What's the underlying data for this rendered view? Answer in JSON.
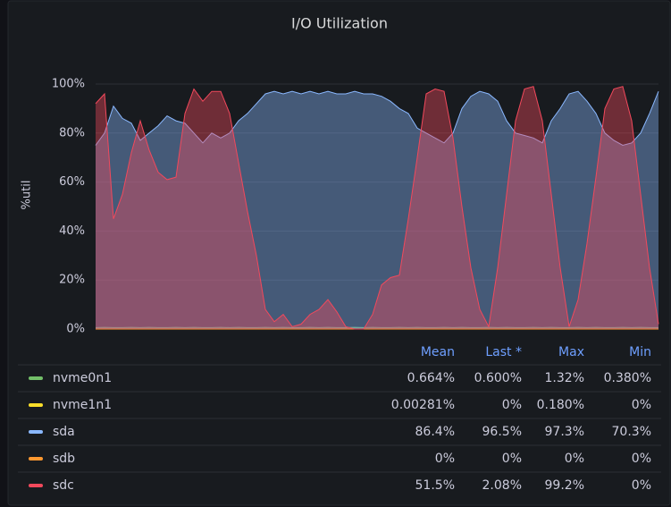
{
  "chart_data": {
    "type": "area",
    "title": "I/O Utilization",
    "y_label": "%util",
    "ylim": [
      0,
      100
    ],
    "yticks": [
      {
        "value": 0,
        "label": "0%"
      },
      {
        "value": 20,
        "label": "20%"
      },
      {
        "value": 40,
        "label": "40%"
      },
      {
        "value": 60,
        "label": "60%"
      },
      {
        "value": 80,
        "label": "80%"
      },
      {
        "value": 100,
        "label": "100%"
      }
    ],
    "grid": true,
    "legend_columns": [
      "Mean",
      "Last *",
      "Max",
      "Min"
    ],
    "series": [
      {
        "name": "nvme0n1",
        "color": "#73bf69",
        "stats": [
          "0.664%",
          "0.600%",
          "1.32%",
          "0.380%"
        ],
        "values": [
          0.6,
          0.7,
          0.6,
          0.6,
          0.7,
          0.6,
          0.7,
          0.6,
          0.6,
          0.7,
          0.6,
          0.7,
          0.6,
          0.6,
          0.7,
          0.6,
          0.7,
          0.6,
          0.6,
          0.7,
          0.6,
          0.7,
          0.6,
          0.6,
          0.7,
          0.6,
          0.7,
          0.6,
          0.6,
          0.7,
          0.6,
          0.7,
          0.6,
          0.6,
          0.7,
          0.6,
          0.7,
          0.6,
          0.6,
          0.7,
          0.6,
          0.7,
          0.6,
          0.6,
          0.7,
          0.6,
          0.7,
          0.6,
          0.6,
          0.7,
          0.6,
          0.7,
          0.6,
          0.6,
          0.7,
          0.6,
          0.7,
          0.6,
          0.6,
          0.7,
          0.6,
          0.7,
          0.6,
          0.6
        ]
      },
      {
        "name": "nvme1n1",
        "color": "#fade2a",
        "stats": [
          "0.00281%",
          "0%",
          "0.180%",
          "0%"
        ],
        "values": [
          0,
          0,
          0,
          0,
          0,
          0,
          0,
          0,
          0,
          0,
          0,
          0,
          0,
          0,
          0,
          0,
          0,
          0,
          0,
          0,
          0,
          0,
          0,
          0,
          0,
          0,
          0,
          0,
          0,
          0,
          0,
          0,
          0,
          0,
          0,
          0,
          0,
          0,
          0,
          0,
          0,
          0,
          0,
          0,
          0,
          0,
          0,
          0,
          0,
          0,
          0,
          0,
          0,
          0,
          0,
          0,
          0,
          0,
          0,
          0,
          0,
          0,
          0,
          0
        ]
      },
      {
        "name": "sda",
        "color": "#8ab8ff",
        "stats": [
          "86.4%",
          "96.5%",
          "97.3%",
          "70.3%"
        ],
        "values": [
          75,
          80,
          91,
          86,
          84,
          77,
          80,
          83,
          87,
          85,
          84,
          80,
          76,
          80,
          78,
          80,
          85,
          88,
          92,
          96,
          97,
          96,
          97,
          96,
          97,
          96,
          97,
          96,
          96,
          97,
          96,
          96,
          95,
          93,
          90,
          88,
          82,
          80,
          78,
          76,
          80,
          90,
          95,
          97,
          96,
          93,
          85,
          80,
          79,
          78,
          76,
          85,
          90,
          96,
          97,
          93,
          88,
          80,
          77,
          75,
          76,
          80,
          88,
          97
        ]
      },
      {
        "name": "sdb",
        "color": "#ff9830",
        "stats": [
          "0%",
          "0%",
          "0%",
          "0%"
        ],
        "values": [
          0,
          0,
          0,
          0,
          0,
          0,
          0,
          0,
          0,
          0,
          0,
          0,
          0,
          0,
          0,
          0,
          0,
          0,
          0,
          0,
          0,
          0,
          0,
          0,
          0,
          0,
          0,
          0,
          0,
          0,
          0,
          0,
          0,
          0,
          0,
          0,
          0,
          0,
          0,
          0,
          0,
          0,
          0,
          0,
          0,
          0,
          0,
          0,
          0,
          0,
          0,
          0,
          0,
          0,
          0,
          0,
          0,
          0,
          0,
          0,
          0,
          0,
          0,
          0
        ]
      },
      {
        "name": "sdc",
        "color": "#f2495c",
        "stats": [
          "51.5%",
          "2.08%",
          "99.2%",
          "0%"
        ],
        "values": [
          92,
          96,
          45,
          55,
          72,
          85,
          73,
          64,
          61,
          62,
          88,
          98,
          93,
          97,
          97,
          88,
          68,
          48,
          30,
          8,
          3,
          6,
          1,
          2,
          6,
          8,
          12,
          7,
          1,
          0,
          0,
          6,
          18,
          21,
          22,
          45,
          70,
          96,
          98,
          97,
          78,
          50,
          25,
          8,
          1,
          25,
          55,
          85,
          98,
          99,
          85,
          55,
          25,
          1,
          12,
          35,
          62,
          90,
          98,
          99,
          85,
          55,
          25,
          2
        ]
      }
    ]
  }
}
